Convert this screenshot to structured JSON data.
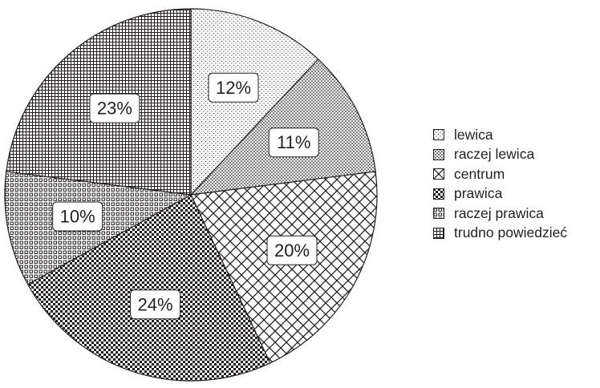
{
  "chart_data": {
    "type": "pie",
    "title": "",
    "slices": [
      {
        "label": "lewica",
        "value": 12,
        "data_label": "12%",
        "pattern": "dots-sparse"
      },
      {
        "label": "raczej lewica",
        "value": 11,
        "data_label": "11%",
        "pattern": "dots-dense"
      },
      {
        "label": "centrum",
        "value": 20,
        "data_label": "20%",
        "pattern": "crosshatch-diagonal"
      },
      {
        "label": "prawica",
        "value": 24,
        "data_label": "24%",
        "pattern": "checker"
      },
      {
        "label": "raczej prawica",
        "value": 10,
        "data_label": "10%",
        "pattern": "small-squares"
      },
      {
        "label": "trudno powiedzieć",
        "value": 23,
        "data_label": "23%",
        "pattern": "fine-grid"
      }
    ],
    "start": "12 o'clock",
    "direction": "clockwise",
    "legend_position": "right",
    "colors": {
      "stroke": "#231f20",
      "background": "#ffffff",
      "text": "#231f20"
    }
  }
}
